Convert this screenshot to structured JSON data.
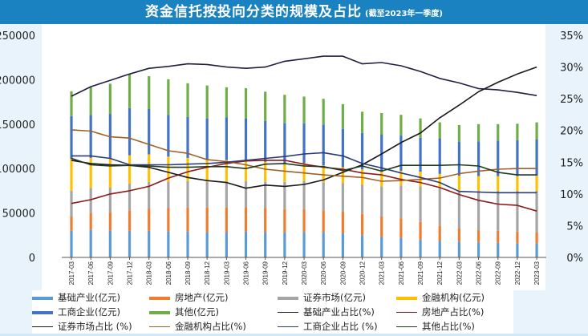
{
  "title": {
    "main": "资金信托按投向分类的规模及占比",
    "sub": "(截至2023年一季度)"
  },
  "colors": {
    "title_bar": "#1a82c0",
    "background": "#e8f3fb",
    "infrastructure": "#5b9bd5",
    "real_estate": "#ed7d31",
    "securities": "#a5a5a5",
    "financial": "#ffc000",
    "industrial": "#4472c4",
    "other": "#70ad47",
    "infra_pct": "#1f1f3f",
    "re_pct": "#8b1a1a",
    "sec_pct": "#1a1a1a",
    "fin_pct": "#a0602a",
    "ind_pct": "#2a3a7a",
    "oth_pct": "#1f3a1f"
  },
  "chart_data": {
    "type": "bar",
    "title": "资金信托按投向分类的规模及占比 (截至2023年一季度)",
    "xlabel": "",
    "ylabel": "",
    "ylim": [
      0,
      250000
    ],
    "y2lim": [
      0,
      35
    ],
    "yticks": [
      "0",
      "50000",
      "100000",
      "150000",
      "200000",
      "250000"
    ],
    "y2ticks": [
      "0%",
      "5%",
      "10%",
      "15%",
      "20%",
      "25%",
      "30%",
      "35%"
    ],
    "grid": false,
    "legend_position": "bottom",
    "categories": [
      "2017-03",
      "2017-06",
      "2017-09",
      "2017-12",
      "2018-03",
      "2018-06",
      "2018-09",
      "2018-12",
      "2019-03",
      "2019-06",
      "2019-09",
      "2019-12",
      "2020-03",
      "2020-06",
      "2020-09",
      "2020-12",
      "2021-03",
      "2021-06",
      "2021-09",
      "2021-12",
      "2022-03",
      "2022-06",
      "2022-09",
      "2022-12",
      "2023-03"
    ],
    "bar_series": [
      {
        "name": "基础产业(亿元)",
        "key": "infrastructure",
        "values": [
          30000,
          31000,
          30500,
          30000,
          30000,
          29500,
          29000,
          28500,
          28500,
          29000,
          28500,
          28000,
          28500,
          28000,
          27000,
          25000,
          23000,
          22000,
          20000,
          18500,
          17500,
          17000,
          16500,
          16000,
          16000
        ]
      },
      {
        "name": "房地产(亿元)",
        "key": "real_estate",
        "values": [
          16000,
          19000,
          20000,
          23000,
          25000,
          26000,
          27000,
          27500,
          27500,
          27500,
          27000,
          26500,
          26000,
          25000,
          24500,
          24000,
          23000,
          22000,
          20000,
          17000,
          15000,
          14000,
          13500,
          13000,
          12000
        ]
      },
      {
        "name": "证券市场(亿元)",
        "key": "securities",
        "values": [
          29000,
          28000,
          28000,
          30000,
          30000,
          30000,
          30000,
          29500,
          29500,
          29500,
          30000,
          30500,
          31500,
          31500,
          32000,
          33000,
          34000,
          37000,
          40000,
          42000,
          43000,
          44000,
          45000,
          46000,
          47000
        ]
      },
      {
        "name": "金融机构(亿元)",
        "key": "financial",
        "values": [
          36000,
          34000,
          33000,
          32000,
          31000,
          28000,
          26000,
          25000,
          24000,
          23000,
          22000,
          21000,
          20000,
          19000,
          18000,
          17000,
          16500,
          16500,
          16500,
          16500,
          16500,
          16500,
          16500,
          16500,
          17000
        ]
      },
      {
        "name": "工商企业(亿元)",
        "key": "industrial",
        "values": [
          48000,
          48500,
          50000,
          53000,
          51000,
          47000,
          46000,
          46000,
          48000,
          47500,
          46000,
          45000,
          45000,
          46000,
          43000,
          41000,
          42000,
          40000,
          38000,
          40000,
          38000,
          39000,
          40000,
          40500,
          41000
        ]
      },
      {
        "name": "其他(亿元)",
        "key": "other",
        "values": [
          28000,
          31000,
          34000,
          38000,
          37000,
          40000,
          38000,
          37000,
          34000,
          34000,
          33000,
          32000,
          30000,
          29000,
          28000,
          24000,
          24000,
          23000,
          22000,
          18000,
          19000,
          19500,
          18500,
          18500,
          19000
        ]
      }
    ],
    "line_series": [
      {
        "name": "基础产业占比(%)",
        "key": "infra_pct",
        "values": [
          25.4,
          26.9,
          27.9,
          28.9,
          29.8,
          30.1,
          30.5,
          30.4,
          30.0,
          29.8,
          30.0,
          30.9,
          31.3,
          31.7,
          31.7,
          30.5,
          30.7,
          30.2,
          29.3,
          28.2,
          27.5,
          26.6,
          26.4,
          26.0,
          25.5
        ]
      },
      {
        "name": "房地产占比(%)",
        "key": "re_pct",
        "values": [
          8.5,
          9.1,
          10.0,
          10.5,
          11.2,
          12.5,
          13.5,
          14.2,
          14.8,
          15.2,
          15.3,
          15.3,
          14.7,
          14.2,
          13.9,
          13.3,
          13.0,
          12.3,
          11.8,
          11.0,
          9.9,
          9.0,
          8.4,
          8.2,
          7.3
        ]
      },
      {
        "name": "证券市场占比(%)",
        "key": "sec_pct",
        "values": [
          15.3,
          14.8,
          14.6,
          14.5,
          14.2,
          13.4,
          12.6,
          12.1,
          11.8,
          10.9,
          11.4,
          11.2,
          11.5,
          12.2,
          13.4,
          14.6,
          16.3,
          18.1,
          19.6,
          22.0,
          24.0,
          26.1,
          27.6,
          28.9,
          30.0
        ]
      },
      {
        "name": "金融机构占比(%)",
        "key": "fin_pct",
        "values": [
          20.1,
          19.9,
          19.0,
          18.8,
          17.8,
          16.8,
          16.4,
          15.4,
          15.1,
          14.6,
          13.9,
          13.6,
          13.3,
          13.0,
          12.8,
          12.6,
          12.0,
          12.1,
          12.3,
          12.5,
          13.2,
          13.6,
          13.9,
          14.0,
          14.0
        ]
      },
      {
        "name": "工商企业占比(%)",
        "key": "ind_pct",
        "values": [
          16.0,
          16.0,
          15.6,
          14.6,
          14.6,
          14.6,
          14.7,
          14.8,
          15.0,
          15.3,
          15.6,
          15.9,
          16.3,
          16.5,
          16.0,
          14.8,
          14.1,
          13.3,
          12.6,
          11.8,
          10.4,
          10.3,
          10.2,
          10.2,
          10.2
        ]
      },
      {
        "name": "其他占比(%)",
        "key": "oth_pct",
        "values": [
          15.6,
          14.6,
          14.4,
          14.5,
          14.4,
          14.2,
          14.2,
          14.3,
          14.3,
          14.0,
          14.7,
          14.8,
          14.4,
          14.3,
          13.7,
          14.4,
          13.6,
          14.5,
          14.5,
          14.5,
          14.6,
          14.4,
          13.4,
          13.0,
          13.0
        ]
      }
    ]
  },
  "legend": [
    {
      "label": "基础产业(亿元)",
      "key": "infrastructure",
      "kind": "bar"
    },
    {
      "label": "房地产(亿元)",
      "key": "real_estate",
      "kind": "bar"
    },
    {
      "label": "证券市场(亿元)",
      "key": "securities",
      "kind": "bar"
    },
    {
      "label": "金融机构(亿元)",
      "key": "financial",
      "kind": "bar"
    },
    {
      "label": "工商企业(亿元)",
      "key": "industrial",
      "kind": "bar"
    },
    {
      "label": "其他(亿元)",
      "key": "other",
      "kind": "bar"
    },
    {
      "label": "基础产业占比(%)",
      "key": "infra_pct",
      "kind": "line"
    },
    {
      "label": "房地产占比(%)",
      "key": "re_pct",
      "kind": "line"
    },
    {
      "label": "证券市场占比 (%)",
      "key": "sec_pct",
      "kind": "line"
    },
    {
      "label": "金融机构占比(%)",
      "key": "fin_pct",
      "kind": "line"
    },
    {
      "label": "工商企业占比 (%)",
      "key": "ind_pct",
      "kind": "line"
    },
    {
      "label": "其他占比(%)",
      "key": "oth_pct",
      "kind": "line"
    }
  ]
}
